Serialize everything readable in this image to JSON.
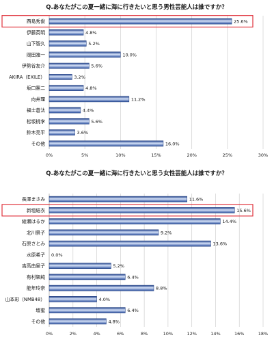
{
  "chart_data": [
    {
      "type": "bar",
      "orientation": "horizontal",
      "title": "Q.あなたがこの夏一緒に海に行きたいと思う男性芸能人は誰ですか？",
      "categories": [
        "西島秀俊",
        "伊藤英明",
        "山下智久",
        "岡田准一",
        "伊勢谷友介",
        "AKIRA（EXILE）",
        "坂口憲二",
        "向井理",
        "福士蒼汰",
        "松坂桃李",
        "鈴木亮平",
        "その他"
      ],
      "values": [
        25.6,
        4.8,
        5.2,
        10.0,
        5.6,
        3.2,
        4.8,
        11.2,
        4.4,
        5.6,
        3.6,
        16.0
      ],
      "labels": [
        "25.6%",
        "4.8%",
        "5.2%",
        "10.0%",
        "5.6%",
        "3.2%",
        "4.8%",
        "11.2%",
        "4.4%",
        "5.6%",
        "3.6%",
        "16.0%"
      ],
      "highlight_index": 0,
      "xlim": [
        0,
        30
      ],
      "ticks": [
        "0%",
        "5%",
        "10%",
        "15%",
        "20%",
        "25%",
        "30%"
      ],
      "grid": true
    },
    {
      "type": "bar",
      "orientation": "horizontal",
      "title": "Q.あなたがこの夏一緒に海に行きたいと思う女性芸能人は誰ですか？",
      "categories": [
        "長澤まさみ",
        "新垣結衣",
        "綾瀬はるか",
        "北川景子",
        "石原さとみ",
        "水原希子",
        "吉高由里子",
        "有村架純",
        "能年玲奈",
        "山本彩（NMB48）",
        "壇蜜",
        "その他"
      ],
      "values": [
        11.6,
        15.6,
        14.4,
        9.2,
        13.6,
        0.0,
        5.2,
        6.4,
        8.8,
        4.0,
        6.4,
        4.8
      ],
      "labels": [
        "11.6%",
        "15.6%",
        "14.4%",
        "9.2%",
        "13.6%",
        "0.0%",
        "5.2%",
        "6.4%",
        "8.8%",
        "4.0%",
        "6.4%",
        "4.8%"
      ],
      "highlight_index": 1,
      "xlim": [
        0,
        18
      ],
      "ticks": [
        "0%",
        "2%",
        "4%",
        "6%",
        "8%",
        "10%",
        "12%",
        "14%",
        "16%",
        "18%"
      ],
      "grid": true
    }
  ],
  "colors": {
    "bar_dark": "#2a4f9e",
    "bar_light": "#c9d8f4",
    "highlight": "#e0313b",
    "grid": "#cfcfcf"
  }
}
